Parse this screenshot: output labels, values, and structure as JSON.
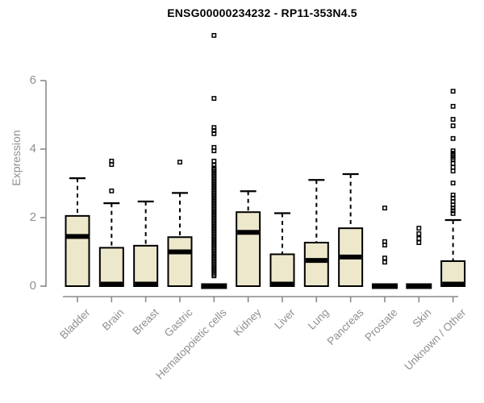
{
  "colors": {
    "box_fill": "#EDE8CC",
    "box_stroke": "#000000",
    "axis_line": "#8a8a8a",
    "axis_text": "#8f8f8f",
    "title_text": "#000000"
  },
  "chart_data": {
    "type": "boxplot",
    "title": "ENSG00000234232 - RP11-353N4.5",
    "xlabel": "",
    "ylabel": "Expression",
    "ylim": [
      0,
      7.5
    ],
    "yticks": [
      0,
      2,
      4,
      6
    ],
    "grid": false,
    "legend": "none",
    "categories": [
      "Bladder",
      "Brain",
      "Breast",
      "Gastric",
      "Hematopoietic cells",
      "Kidney",
      "Liver",
      "Lung",
      "Pancreas",
      "Prostate",
      "Skin",
      "Unknown / Other"
    ],
    "boxes": [
      {
        "category": "Bladder",
        "q1": 0,
        "median": 1.45,
        "q3": 2.05,
        "whisker_low": 0,
        "whisker_high": 3.15,
        "collapsed": false,
        "outliers": []
      },
      {
        "category": "Brain",
        "q1": 0,
        "median": 0.05,
        "q3": 1.12,
        "whisker_low": 0,
        "whisker_high": 2.42,
        "collapsed": false,
        "outliers": [
          2.78,
          3.55,
          3.65
        ]
      },
      {
        "category": "Breast",
        "q1": 0,
        "median": 0.05,
        "q3": 1.18,
        "whisker_low": 0,
        "whisker_high": 2.47,
        "collapsed": false,
        "outliers": []
      },
      {
        "category": "Gastric",
        "q1": 0,
        "median": 1.0,
        "q3": 1.43,
        "whisker_low": 0,
        "whisker_high": 2.72,
        "collapsed": false,
        "outliers": [
          3.62
        ]
      },
      {
        "category": "Hematopoietic cells",
        "q1": 0,
        "median": 0,
        "q3": 0,
        "whisker_low": 0,
        "whisker_high": 0,
        "collapsed": true,
        "outliers": [
          3.53,
          3.65,
          3.95,
          4.05,
          4.45,
          4.54,
          4.63,
          5.48,
          7.32
        ],
        "dense_outliers": {
          "from": 0.3,
          "to": 3.45,
          "count": 66
        }
      },
      {
        "category": "Kidney",
        "q1": 0,
        "median": 1.57,
        "q3": 2.16,
        "whisker_low": 0,
        "whisker_high": 2.77,
        "collapsed": false,
        "outliers": []
      },
      {
        "category": "Liver",
        "q1": 0,
        "median": 0.05,
        "q3": 0.93,
        "whisker_low": 0,
        "whisker_high": 2.13,
        "collapsed": false,
        "outliers": []
      },
      {
        "category": "Lung",
        "q1": 0,
        "median": 0.75,
        "q3": 1.27,
        "whisker_low": 0,
        "whisker_high": 3.1,
        "collapsed": false,
        "outliers": []
      },
      {
        "category": "Pancreas",
        "q1": 0,
        "median": 0.85,
        "q3": 1.69,
        "whisker_low": 0,
        "whisker_high": 3.27,
        "collapsed": false,
        "outliers": []
      },
      {
        "category": "Prostate",
        "q1": 0,
        "median": 0,
        "q3": 0,
        "whisker_low": 0,
        "whisker_high": 0,
        "collapsed": true,
        "outliers": [
          0.7,
          0.82,
          1.2,
          1.3,
          2.28
        ]
      },
      {
        "category": "Skin",
        "q1": 0,
        "median": 0,
        "q3": 0,
        "whisker_low": 0,
        "whisker_high": 0,
        "collapsed": true,
        "outliers": [
          1.27,
          1.39,
          1.53,
          1.69
        ]
      },
      {
        "category": "Unknown / Other",
        "q1": 0,
        "median": 0.03,
        "q3": 0.73,
        "whisker_low": 0,
        "whisker_high": 1.93,
        "collapsed": false,
        "outliers": [
          2.12,
          2.2,
          2.28,
          2.37,
          2.47,
          2.57,
          2.66,
          3.01,
          3.36,
          3.47,
          3.58,
          3.7,
          3.76,
          3.82,
          3.88,
          3.95,
          4.31,
          4.68,
          4.87,
          5.25,
          5.69
        ]
      }
    ]
  }
}
